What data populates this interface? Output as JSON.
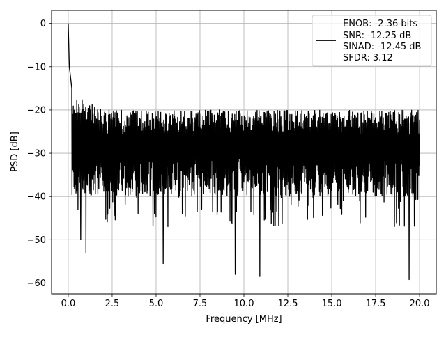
{
  "chart_data": {
    "type": "line",
    "title": "",
    "xlabel": "Frequency [MHz]",
    "ylabel": "PSD [dB]",
    "xlim": [
      -0.95,
      20.95
    ],
    "ylim": [
      -62.5,
      3.0
    ],
    "x_ticks": [
      0.0,
      2.5,
      5.0,
      7.5,
      10.0,
      12.5,
      15.0,
      17.5,
      20.0
    ],
    "x_tick_labels": [
      "0.0",
      "2.5",
      "5.0",
      "7.5",
      "10.0",
      "12.5",
      "15.0",
      "17.5",
      "20.0"
    ],
    "y_ticks": [
      0,
      -10,
      -20,
      -30,
      -40,
      -50,
      -60
    ],
    "y_tick_labels": [
      "0",
      "−10",
      "−20",
      "−30",
      "−40",
      "−50",
      "−60"
    ],
    "grid": true,
    "legend_position": "top-right",
    "line_color": "#000000",
    "series": [
      {
        "x_start": 0.0,
        "x_end": 20.0,
        "noise_floor_db": -28,
        "approx_upper_envelope_db": -20,
        "approx_lower_envelope_db": -47,
        "deepest_dip_db": -59.2,
        "peaks": [
          {
            "x": 0.0,
            "y": 0.0
          },
          {
            "x": 0.03,
            "y": -5.0
          },
          {
            "x": 0.06,
            "y": -10.0
          },
          {
            "x": 0.12,
            "y": -12.0
          },
          {
            "x": 0.2,
            "y": -15.0
          }
        ],
        "dips": [
          {
            "x": 0.7,
            "y": -50.0
          },
          {
            "x": 1.0,
            "y": -53.0
          },
          {
            "x": 5.4,
            "y": -55.5
          },
          {
            "x": 9.5,
            "y": -58.0
          },
          {
            "x": 10.9,
            "y": -58.5
          },
          {
            "x": 19.4,
            "y": -59.2
          }
        ]
      }
    ],
    "legend": {
      "lines": [
        "ENOB: -2.36 bits",
        "SNR: -12.25 dB",
        "SINAD: -12.45 dB",
        "SFDR: 3.12"
      ]
    }
  }
}
